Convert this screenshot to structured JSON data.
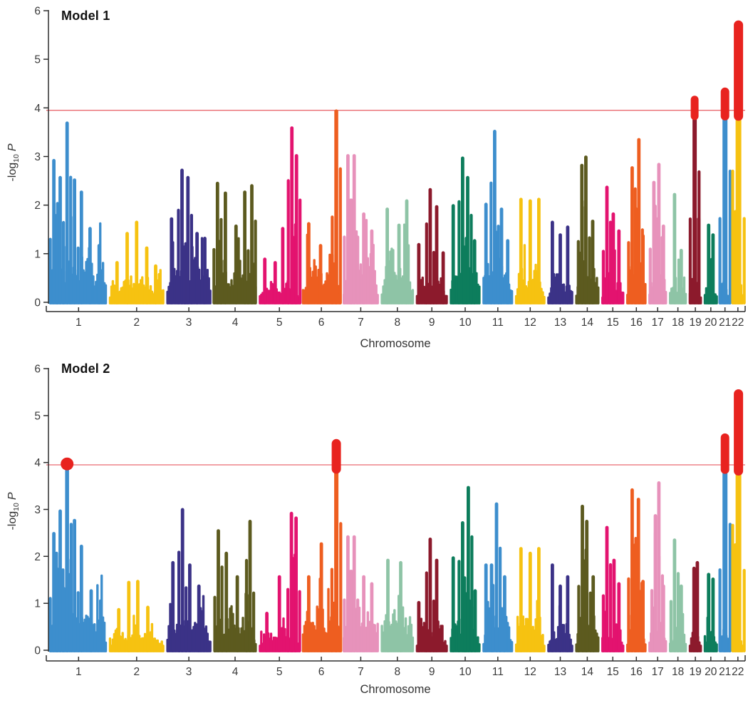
{
  "palette": {
    "colors": [
      "#3d8ecd",
      "#f6c211",
      "#3b3287",
      "#5c5a1f",
      "#e3136f",
      "#ee5e20",
      "#e792bb",
      "#8ec4a6",
      "#8c1a2c",
      "#0d7d5c"
    ],
    "significant": "#e8231f",
    "threshold_line": "#ea6a70",
    "axis": "#2e2e2e",
    "text": "#3a3a3a"
  },
  "chart_data": [
    {
      "type": "scatter",
      "subtype": "manhattan",
      "title": "Model 1",
      "xlabel": "Chromosome",
      "ylabel": "-log10 P",
      "ylabel_parts": {
        "prefix": "-log",
        "sub": "10",
        "variable": "P"
      },
      "ylim": [
        0,
        6
      ],
      "yticks": [
        "0",
        "1",
        "2",
        "3",
        "4",
        "5",
        "6"
      ],
      "threshold": 3.95,
      "x_categories": [
        "1",
        "2",
        "3",
        "4",
        "5",
        "6",
        "7",
        "8",
        "9",
        "10",
        "11",
        "12",
        "13",
        "14",
        "15",
        "16",
        "17",
        "18",
        "19",
        "20",
        "21",
        "22"
      ],
      "chromosomes": [
        {
          "chr": "1",
          "rel_width": 249,
          "base": 1.45,
          "peaks": [
            [
              0.07,
              2.95
            ],
            [
              0.18,
              2.6
            ],
            [
              0.3,
              3.72
            ],
            [
              0.43,
              2.55
            ],
            [
              0.55,
              2.3
            ],
            [
              0.7,
              1.55
            ],
            [
              0.86,
              1.2
            ]
          ]
        },
        {
          "chr": "2",
          "rel_width": 243,
          "base": 0.72,
          "peaks": [
            [
              0.15,
              0.85
            ],
            [
              0.33,
              1.45
            ],
            [
              0.5,
              1.68
            ],
            [
              0.68,
              1.15
            ],
            [
              0.84,
              0.78
            ]
          ]
        },
        {
          "chr": "3",
          "rel_width": 198,
          "base": 1.12,
          "peaks": [
            [
              0.12,
              1.75
            ],
            [
              0.35,
              2.75
            ],
            [
              0.48,
              2.6
            ],
            [
              0.68,
              1.45
            ],
            [
              0.85,
              1.35
            ]
          ]
        },
        {
          "chr": "4",
          "rel_width": 191,
          "base": 1.18,
          "peaks": [
            [
              0.1,
              2.48
            ],
            [
              0.28,
              2.28
            ],
            [
              0.52,
              1.6
            ],
            [
              0.72,
              2.3
            ],
            [
              0.88,
              2.43
            ]
          ]
        },
        {
          "chr": "5",
          "rel_width": 181,
          "base": 0.62,
          "peaks": [
            [
              0.15,
              0.92
            ],
            [
              0.4,
              0.85
            ],
            [
              0.58,
              1.55
            ],
            [
              0.8,
              3.62
            ],
            [
              0.91,
              3.05
            ]
          ]
        },
        {
          "chr": "6",
          "rel_width": 171,
          "base": 1.28,
          "peaks": [
            [
              0.18,
              1.65
            ],
            [
              0.48,
              1.2
            ],
            [
              0.88,
              3.97,
              5.5
            ]
          ]
        },
        {
          "chr": "7",
          "rel_width": 159,
          "base": 1.42,
          "peaks": [
            [
              0.15,
              3.05
            ],
            [
              0.32,
              3.05
            ],
            [
              0.58,
              1.85
            ],
            [
              0.8,
              1.5
            ]
          ]
        },
        {
          "chr": "8",
          "rel_width": 146,
          "base": 1.45,
          "peaks": [
            [
              0.2,
              1.95
            ],
            [
              0.55,
              1.62
            ],
            [
              0.78,
              2.12
            ]
          ]
        },
        {
          "chr": "9",
          "rel_width": 141,
          "base": 0.82,
          "peaks": [
            [
              0.1,
              1.22
            ],
            [
              0.45,
              2.35
            ],
            [
              0.65,
              2.0
            ],
            [
              0.85,
              1.05
            ]
          ]
        },
        {
          "chr": "10",
          "rel_width": 136,
          "base": 1.32,
          "peaks": [
            [
              0.12,
              2.02
            ],
            [
              0.42,
              3.0
            ],
            [
              0.58,
              2.6
            ],
            [
              0.8,
              1.3
            ]
          ]
        },
        {
          "chr": "11",
          "rel_width": 135,
          "base": 1.28,
          "peaks": [
            [
              0.12,
              2.05
            ],
            [
              0.4,
              3.55
            ],
            [
              0.62,
              1.95
            ],
            [
              0.82,
              1.3
            ]
          ]
        },
        {
          "chr": "12",
          "rel_width": 134,
          "base": 1.05,
          "peaks": [
            [
              0.2,
              2.15
            ],
            [
              0.5,
              2.12
            ],
            [
              0.78,
              2.15
            ]
          ]
        },
        {
          "chr": "13",
          "rel_width": 115,
          "base": 0.88,
          "peaks": [
            [
              0.2,
              1.68
            ],
            [
              0.5,
              1.42
            ],
            [
              0.78,
              1.58
            ]
          ]
        },
        {
          "chr": "14",
          "rel_width": 107,
          "base": 1.22,
          "peaks": [
            [
              0.28,
              2.85
            ],
            [
              0.44,
              3.02
            ],
            [
              0.72,
              1.7
            ]
          ]
        },
        {
          "chr": "15",
          "rel_width": 102,
          "base": 0.92,
          "peaks": [
            [
              0.25,
              2.4
            ],
            [
              0.52,
              1.85
            ],
            [
              0.76,
              1.5
            ]
          ]
        },
        {
          "chr": "16",
          "rel_width": 90,
          "base": 1.08,
          "peaks": [
            [
              0.3,
              2.8
            ],
            [
              0.62,
              3.38
            ],
            [
              0.82,
              1.4
            ]
          ]
        },
        {
          "chr": "17",
          "rel_width": 83,
          "base": 1.22,
          "peaks": [
            [
              0.3,
              2.5
            ],
            [
              0.56,
              2.87
            ],
            [
              0.8,
              1.6
            ]
          ]
        },
        {
          "chr": "18",
          "rel_width": 80,
          "base": 0.82,
          "peaks": [
            [
              0.32,
              2.25
            ],
            [
              0.68,
              1.1
            ]
          ]
        },
        {
          "chr": "19",
          "rel_width": 59,
          "base": 0.78,
          "peaks": [
            [
              0.45,
              3.88,
              6
            ],
            [
              0.75,
              1.75
            ]
          ]
        },
        {
          "chr": "20",
          "rel_width": 63,
          "base": 0.82,
          "peaks": [
            [
              0.35,
              1.62
            ],
            [
              0.65,
              1.42
            ]
          ]
        },
        {
          "chr": "21",
          "rel_width": 48,
          "base": 0.88,
          "peaks": [
            [
              0.5,
              3.9,
              7
            ]
          ]
        },
        {
          "chr": "22",
          "rel_width": 51,
          "base": 0.78,
          "peaks": [
            [
              0.3,
              1.9
            ],
            [
              0.55,
              3.9,
              8
            ]
          ]
        }
      ],
      "significant": [
        {
          "chr": "19",
          "rel": 0.45,
          "from": 3.83,
          "to": 4.25,
          "w": 11
        },
        {
          "chr": "21",
          "rel": 0.5,
          "from": 3.83,
          "to": 4.42,
          "w": 12
        },
        {
          "chr": "22",
          "rel": 0.55,
          "from": 3.83,
          "to": 5.8,
          "w": 13
        }
      ]
    },
    {
      "type": "scatter",
      "subtype": "manhattan",
      "title": "Model 2",
      "xlabel": "Chromosome",
      "ylabel": "-log10 P",
      "ylabel_parts": {
        "prefix": "-log",
        "sub": "10",
        "variable": "P"
      },
      "ylim": [
        0,
        6
      ],
      "yticks": [
        "0",
        "1",
        "2",
        "3",
        "4",
        "5",
        "6"
      ],
      "threshold": 3.95,
      "x_categories": [
        "1",
        "2",
        "3",
        "4",
        "5",
        "6",
        "7",
        "8",
        "9",
        "10",
        "11",
        "12",
        "13",
        "14",
        "15",
        "16",
        "17",
        "18",
        "19",
        "20",
        "21",
        "22"
      ],
      "chromosomes": [
        {
          "chr": "1",
          "rel_width": 249,
          "base": 1.38,
          "peaks": [
            [
              0.07,
              2.52
            ],
            [
              0.18,
              3.0
            ],
            [
              0.3,
              3.88,
              5.5
            ],
            [
              0.43,
              2.8
            ],
            [
              0.55,
              2.25
            ],
            [
              0.72,
              1.3
            ]
          ]
        },
        {
          "chr": "2",
          "rel_width": 243,
          "base": 0.68,
          "peaks": [
            [
              0.18,
              0.9
            ],
            [
              0.36,
              1.48
            ],
            [
              0.52,
              1.5
            ],
            [
              0.7,
              0.95
            ]
          ]
        },
        {
          "chr": "3",
          "rel_width": 198,
          "base": 1.1,
          "peaks": [
            [
              0.15,
              1.9
            ],
            [
              0.36,
              3.03
            ],
            [
              0.52,
              1.85
            ],
            [
              0.72,
              1.4
            ]
          ]
        },
        {
          "chr": "4",
          "rel_width": 191,
          "base": 1.15,
          "peaks": [
            [
              0.12,
              2.58
            ],
            [
              0.3,
              2.1
            ],
            [
              0.55,
              1.6
            ],
            [
              0.84,
              2.78
            ]
          ]
        },
        {
          "chr": "5",
          "rel_width": 181,
          "base": 0.6,
          "peaks": [
            [
              0.2,
              0.82
            ],
            [
              0.5,
              1.6
            ],
            [
              0.79,
              2.95
            ],
            [
              0.9,
              2.85
            ]
          ]
        },
        {
          "chr": "6",
          "rel_width": 171,
          "base": 1.26,
          "peaks": [
            [
              0.18,
              1.6
            ],
            [
              0.5,
              2.3
            ],
            [
              0.88,
              3.9,
              6
            ]
          ]
        },
        {
          "chr": "7",
          "rel_width": 159,
          "base": 1.4,
          "peaks": [
            [
              0.15,
              2.45
            ],
            [
              0.32,
              2.45
            ],
            [
              0.58,
              1.6
            ],
            [
              0.8,
              1.45
            ]
          ]
        },
        {
          "chr": "8",
          "rel_width": 146,
          "base": 1.42,
          "peaks": [
            [
              0.22,
              1.95
            ],
            [
              0.6,
              1.9
            ]
          ]
        },
        {
          "chr": "9",
          "rel_width": 141,
          "base": 0.8,
          "peaks": [
            [
              0.1,
              1.05
            ],
            [
              0.45,
              2.4
            ],
            [
              0.65,
              1.95
            ]
          ]
        },
        {
          "chr": "10",
          "rel_width": 136,
          "base": 1.3,
          "peaks": [
            [
              0.12,
              2.0
            ],
            [
              0.42,
              2.75
            ],
            [
              0.6,
              3.5
            ],
            [
              0.82,
              1.3
            ]
          ]
        },
        {
          "chr": "11",
          "rel_width": 135,
          "base": 1.25,
          "peaks": [
            [
              0.12,
              1.85
            ],
            [
              0.3,
              1.85
            ],
            [
              0.46,
              3.15
            ],
            [
              0.72,
              1.6
            ]
          ]
        },
        {
          "chr": "12",
          "rel_width": 134,
          "base": 1.05,
          "peaks": [
            [
              0.2,
              2.2
            ],
            [
              0.5,
              2.1
            ],
            [
              0.78,
              2.2
            ]
          ]
        },
        {
          "chr": "13",
          "rel_width": 115,
          "base": 0.88,
          "peaks": [
            [
              0.2,
              1.85
            ],
            [
              0.5,
              1.4
            ],
            [
              0.78,
              1.6
            ]
          ]
        },
        {
          "chr": "14",
          "rel_width": 107,
          "base": 1.2,
          "peaks": [
            [
              0.3,
              3.1
            ],
            [
              0.48,
              2.78
            ],
            [
              0.74,
              1.6
            ]
          ]
        },
        {
          "chr": "15",
          "rel_width": 102,
          "base": 0.92,
          "peaks": [
            [
              0.25,
              2.65
            ],
            [
              0.55,
              1.95
            ],
            [
              0.76,
              1.45
            ]
          ]
        },
        {
          "chr": "16",
          "rel_width": 90,
          "base": 1.08,
          "peaks": [
            [
              0.3,
              3.45
            ],
            [
              0.6,
              3.25
            ],
            [
              0.82,
              1.5
            ]
          ]
        },
        {
          "chr": "17",
          "rel_width": 83,
          "base": 1.2,
          "peaks": [
            [
              0.38,
              2.9
            ],
            [
              0.56,
              3.6
            ],
            [
              0.8,
              1.4
            ]
          ]
        },
        {
          "chr": "18",
          "rel_width": 80,
          "base": 0.82,
          "peaks": [
            [
              0.32,
              2.38
            ],
            [
              0.68,
              1.4
            ]
          ]
        },
        {
          "chr": "19",
          "rel_width": 59,
          "base": 0.78,
          "peaks": [
            [
              0.4,
              1.78
            ],
            [
              0.65,
              1.9
            ]
          ]
        },
        {
          "chr": "20",
          "rel_width": 63,
          "base": 0.82,
          "peaks": [
            [
              0.35,
              1.65
            ],
            [
              0.65,
              1.55
            ]
          ]
        },
        {
          "chr": "21",
          "rel_width": 48,
          "base": 0.88,
          "peaks": [
            [
              0.5,
              3.88,
              7
            ]
          ]
        },
        {
          "chr": "22",
          "rel_width": 51,
          "base": 0.78,
          "peaks": [
            [
              0.3,
              2.28
            ],
            [
              0.55,
              3.85,
              8
            ]
          ]
        }
      ],
      "significant": [
        {
          "chr": "1",
          "rel": 0.3,
          "shape": "dot",
          "at": 3.97,
          "r": 9
        },
        {
          "chr": "6",
          "rel": 0.88,
          "from": 3.86,
          "to": 4.5,
          "w": 13
        },
        {
          "chr": "21",
          "rel": 0.5,
          "from": 3.85,
          "to": 4.62,
          "w": 12
        },
        {
          "chr": "22",
          "rel": 0.55,
          "from": 3.82,
          "to": 5.56,
          "w": 13
        }
      ]
    }
  ]
}
